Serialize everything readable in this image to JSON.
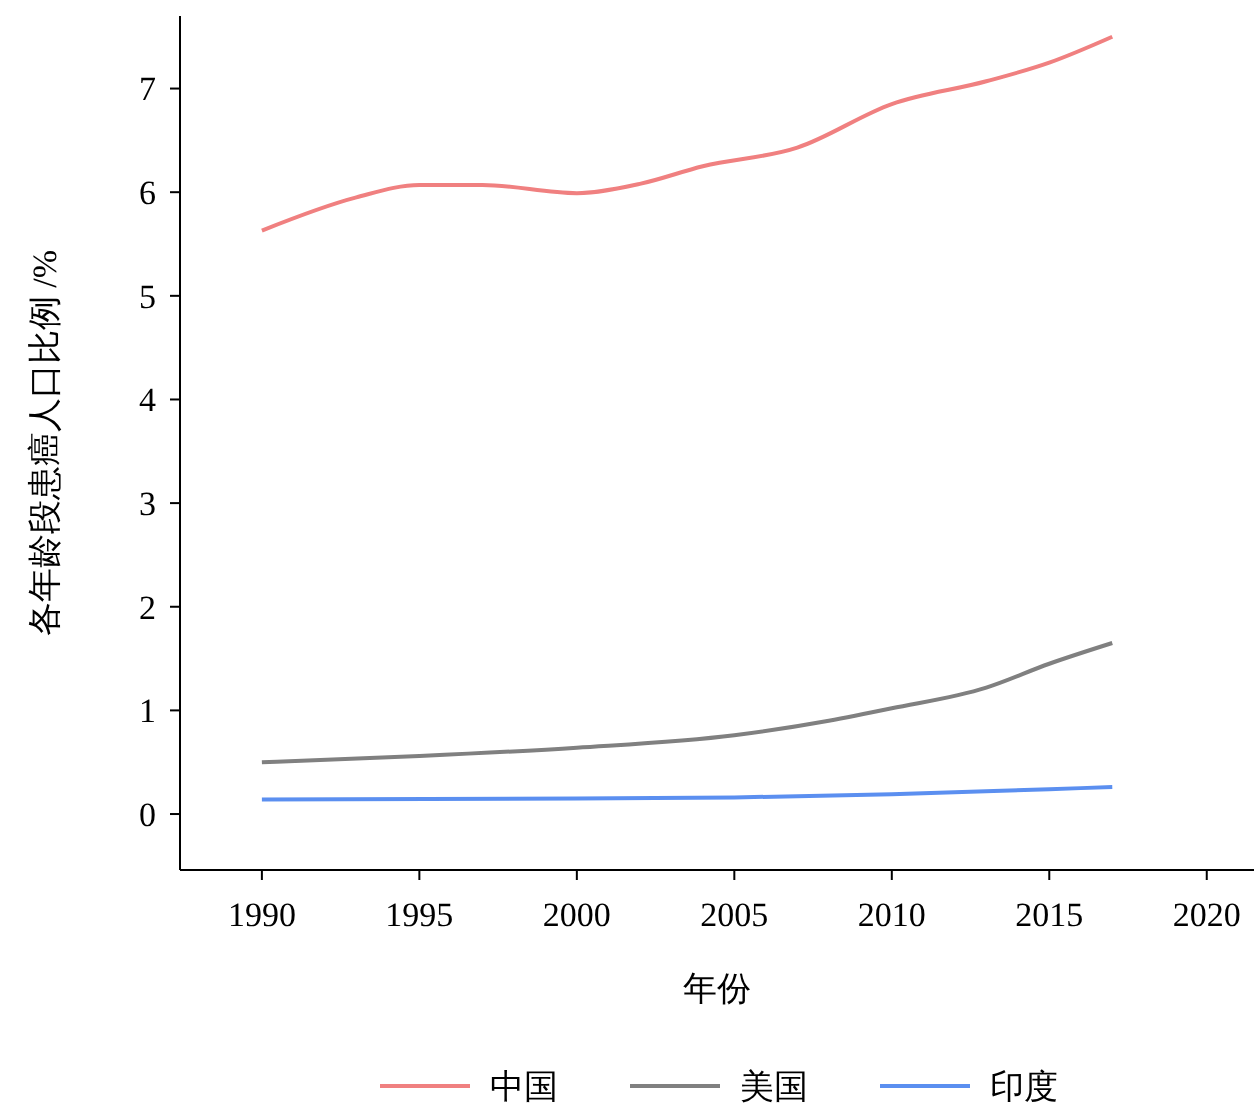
{
  "chart_data": {
    "type": "line",
    "xlabel": "年份",
    "ylabel": "各年龄段患癌人口比例 /%",
    "xlim": [
      1987.4,
      2021.5
    ],
    "xticks": [
      1990,
      1995,
      2000,
      2005,
      2010,
      2015,
      2020
    ],
    "ylim": [
      -0.54,
      7.7
    ],
    "yticks": [
      0,
      1,
      2,
      3,
      4,
      5,
      6,
      7
    ],
    "legend": "bottom",
    "grid": false,
    "marker": "none",
    "line_style": "solid",
    "series": [
      {
        "name": "中国",
        "color": "#f08080",
        "x": [
          1990,
          1993,
          1995,
          1997,
          2000,
          2002,
          2004,
          2007,
          2010,
          2013,
          2015,
          2017
        ],
        "values": [
          5.63,
          5.95,
          6.07,
          6.07,
          5.99,
          6.08,
          6.25,
          6.43,
          6.85,
          7.07,
          7.25,
          7.5
        ]
      },
      {
        "name": "美国",
        "color": "#808080",
        "x": [
          1990,
          1995,
          2000,
          2005,
          2008,
          2010,
          2013,
          2015,
          2017
        ],
        "values": [
          0.5,
          0.56,
          0.64,
          0.76,
          0.9,
          1.02,
          1.22,
          1.45,
          1.65
        ]
      },
      {
        "name": "印度",
        "color": "#5b8ff0",
        "x": [
          1990,
          2000,
          2005,
          2010,
          2015,
          2017
        ],
        "values": [
          0.14,
          0.15,
          0.16,
          0.19,
          0.24,
          0.26
        ]
      }
    ]
  }
}
